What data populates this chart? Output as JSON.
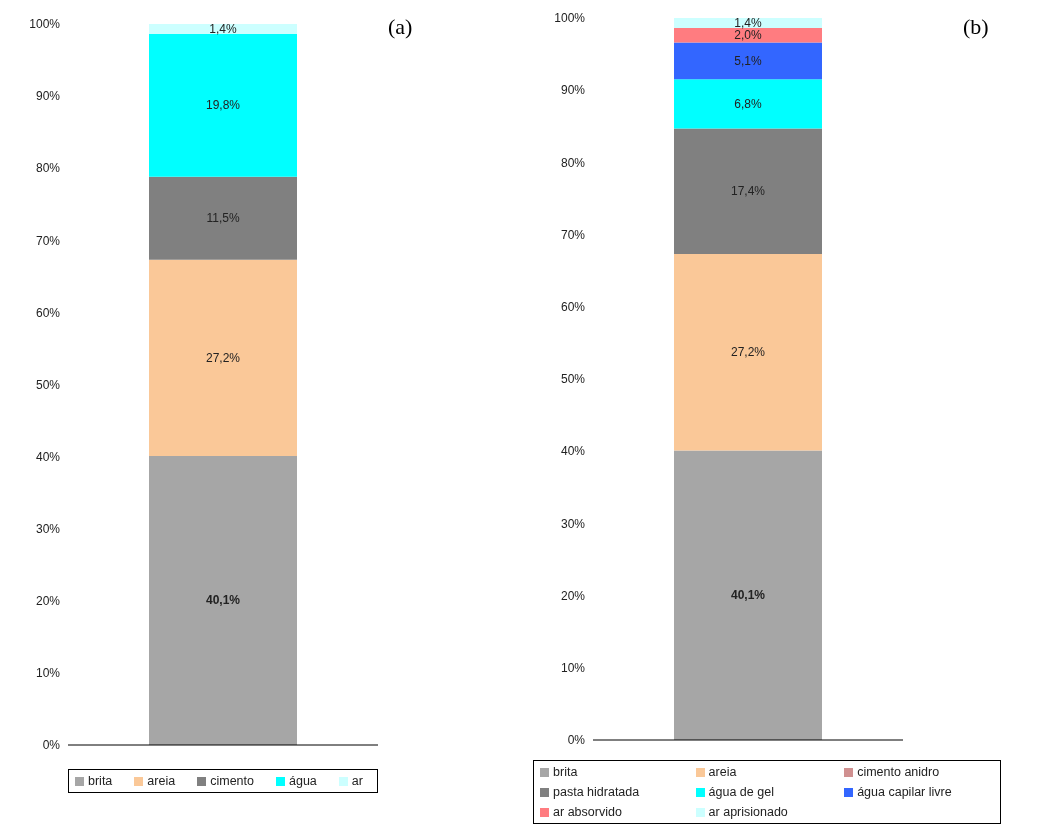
{
  "chart_data": [
    {
      "type": "bar",
      "stacked": true,
      "categories": [
        null
      ],
      "ylim": [
        0,
        100
      ],
      "yticks": [
        {
          "value": 0,
          "label": "0%"
        },
        {
          "value": 10,
          "label": "10%"
        },
        {
          "value": 20,
          "label": "20%"
        },
        {
          "value": 30,
          "label": "30%"
        },
        {
          "value": 40,
          "label": "40%"
        },
        {
          "value": 50,
          "label": "50%"
        },
        {
          "value": 60,
          "label": "60%"
        },
        {
          "value": 70,
          "label": "70%"
        },
        {
          "value": 80,
          "label": "80%"
        },
        {
          "value": 90,
          "label": "90%"
        },
        {
          "value": 100,
          "label": "100%"
        }
      ],
      "grid": false,
      "legend": "bottom",
      "annotations": [
        "(a)"
      ],
      "series": [
        {
          "name": "brita",
          "color": "#a6a6a6",
          "values": [
            40.1
          ],
          "value_labels": [
            "40,1%"
          ]
        },
        {
          "name": "areia",
          "color": "#fac898",
          "values": [
            27.2
          ],
          "value_labels": [
            "27,2%"
          ]
        },
        {
          "name": "cimento",
          "color": "#808080",
          "values": [
            11.5
          ],
          "value_labels": [
            "11,5%"
          ]
        },
        {
          "name": "água",
          "color": "#00ffff",
          "values": [
            19.8
          ],
          "value_labels": [
            "19,8%"
          ]
        },
        {
          "name": "ar",
          "color": "#ccffff",
          "values": [
            1.4
          ],
          "value_labels": [
            "1,4%"
          ]
        }
      ]
    },
    {
      "type": "bar",
      "stacked": true,
      "categories": [
        null
      ],
      "ylim": [
        0,
        100
      ],
      "yticks": [
        {
          "value": 0,
          "label": "0%"
        },
        {
          "value": 10,
          "label": "10%"
        },
        {
          "value": 20,
          "label": "20%"
        },
        {
          "value": 30,
          "label": "30%"
        },
        {
          "value": 40,
          "label": "40%"
        },
        {
          "value": 50,
          "label": "50%"
        },
        {
          "value": 60,
          "label": "60%"
        },
        {
          "value": 70,
          "label": "70%"
        },
        {
          "value": 80,
          "label": "80%"
        },
        {
          "value": 90,
          "label": "90%"
        },
        {
          "value": 100,
          "label": "100%"
        }
      ],
      "grid": false,
      "legend": "bottom",
      "annotations": [
        "(b)"
      ],
      "series": [
        {
          "name": "brita",
          "color": "#a6a6a6",
          "values": [
            40.1
          ],
          "value_labels": [
            "40,1%"
          ]
        },
        {
          "name": "areia",
          "color": "#fac898",
          "values": [
            27.2
          ],
          "value_labels": [
            "27,2%"
          ]
        },
        {
          "name": "cimento anidro",
          "color": "#d09090",
          "values": [
            null
          ],
          "value_labels": [
            null
          ]
        },
        {
          "name": "pasta hidratada",
          "color": "#808080",
          "values": [
            17.4
          ],
          "value_labels": [
            "17,4%"
          ]
        },
        {
          "name": "água de gel",
          "color": "#00ffff",
          "values": [
            6.8
          ],
          "value_labels": [
            "6,8%"
          ]
        },
        {
          "name": "água capilar livre",
          "color": "#3366ff",
          "values": [
            5.1
          ],
          "value_labels": [
            "5,1%"
          ]
        },
        {
          "name": "ar absorvido",
          "color": "#ff7c80",
          "values": [
            2.0
          ],
          "value_labels": [
            "2,0%"
          ]
        },
        {
          "name": "ar aprisionado",
          "color": "#ccffff",
          "values": [
            1.4
          ],
          "value_labels": [
            "1,4%"
          ]
        }
      ]
    }
  ]
}
